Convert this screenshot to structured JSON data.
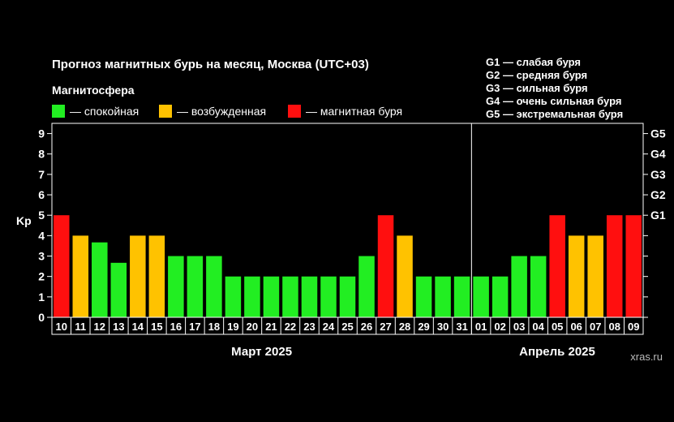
{
  "title": "Прогноз магнитных бурь на месяц, Москва (UTC+03)",
  "legend": {
    "heading": "Магнитосфера",
    "items": [
      {
        "label": "— спокойная",
        "color": "#22ee22"
      },
      {
        "label": "— возбужденная",
        "color": "#ffc200"
      },
      {
        "label": "— магнитная буря",
        "color": "#ff0f0f"
      }
    ]
  },
  "g_scale": [
    "G1 — слабая буря",
    "G2 — средняя буря",
    "G3 — сильная буря",
    "G4 — очень сильная буря",
    "G5 — экстремальная буря"
  ],
  "watermark": "xras.ru",
  "chart_data": {
    "type": "bar",
    "ylabel": "Kp",
    "ylim": [
      0,
      9.5
    ],
    "y_ticks": [
      "0",
      "1",
      "2",
      "3",
      "4",
      "5",
      "6",
      "7",
      "8",
      "9"
    ],
    "right_ticks": [
      "G1",
      "G2",
      "G3",
      "G4",
      "G5"
    ],
    "grid": false,
    "months": [
      {
        "label": "Март 2025",
        "count": 22
      },
      {
        "label": "Апрель 2025",
        "count": 9
      }
    ],
    "categories": [
      "10",
      "11",
      "12",
      "13",
      "14",
      "15",
      "16",
      "17",
      "18",
      "19",
      "20",
      "21",
      "22",
      "23",
      "24",
      "25",
      "26",
      "27",
      "28",
      "29",
      "30",
      "31",
      "01",
      "02",
      "03",
      "04",
      "05",
      "06",
      "07",
      "08",
      "09"
    ],
    "values": [
      5,
      4,
      3.67,
      2.67,
      4,
      4,
      3,
      3,
      3,
      2,
      2,
      2,
      2,
      2,
      2,
      2,
      3,
      5,
      4,
      2,
      2,
      2,
      2,
      2,
      3,
      3,
      5,
      4,
      4,
      5,
      5
    ],
    "status": [
      "storm",
      "excited",
      "quiet",
      "quiet",
      "excited",
      "excited",
      "quiet",
      "quiet",
      "quiet",
      "quiet",
      "quiet",
      "quiet",
      "quiet",
      "quiet",
      "quiet",
      "quiet",
      "quiet",
      "storm",
      "excited",
      "quiet",
      "quiet",
      "quiet",
      "quiet",
      "quiet",
      "quiet",
      "quiet",
      "storm",
      "excited",
      "excited",
      "storm",
      "storm"
    ],
    "colors": {
      "quiet": "#22ee22",
      "excited": "#ffc200",
      "storm": "#ff0f0f"
    }
  }
}
